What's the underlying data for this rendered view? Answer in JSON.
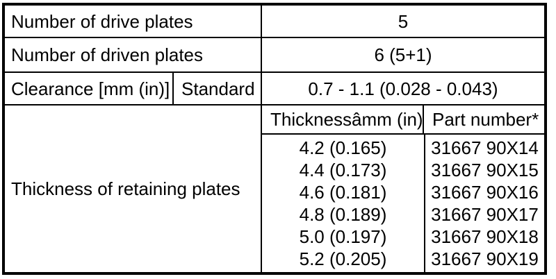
{
  "colors": {
    "border": "#000000",
    "background": "#ffffff",
    "text": "#000000"
  },
  "table": {
    "rows": [
      {
        "label": "Number of drive plates",
        "value": "5"
      },
      {
        "label": "Number of driven plates",
        "value": "6 (5+1)"
      },
      {
        "label": "Clearance [mm (in)]",
        "sublabel": "Standard",
        "value": "0.7 - 1.1 (0.028 - 0.043)"
      }
    ],
    "retaining": {
      "label": "Thickness of retaining plates",
      "thickness_header": "Thicknessâmm (in)",
      "part_header": "Part number*",
      "entries": [
        {
          "thickness": "4.2 (0.165)",
          "part": "31667 90X14"
        },
        {
          "thickness": "4.4 (0.173)",
          "part": "31667 90X15"
        },
        {
          "thickness": "4.6 (0.181)",
          "part": "31667 90X16"
        },
        {
          "thickness": "4.8 (0.189)",
          "part": "31667 90X17"
        },
        {
          "thickness": "5.0 (0.197)",
          "part": "31667 90X18"
        },
        {
          "thickness": "5.2 (0.205)",
          "part": "31667 90X19"
        }
      ]
    }
  }
}
